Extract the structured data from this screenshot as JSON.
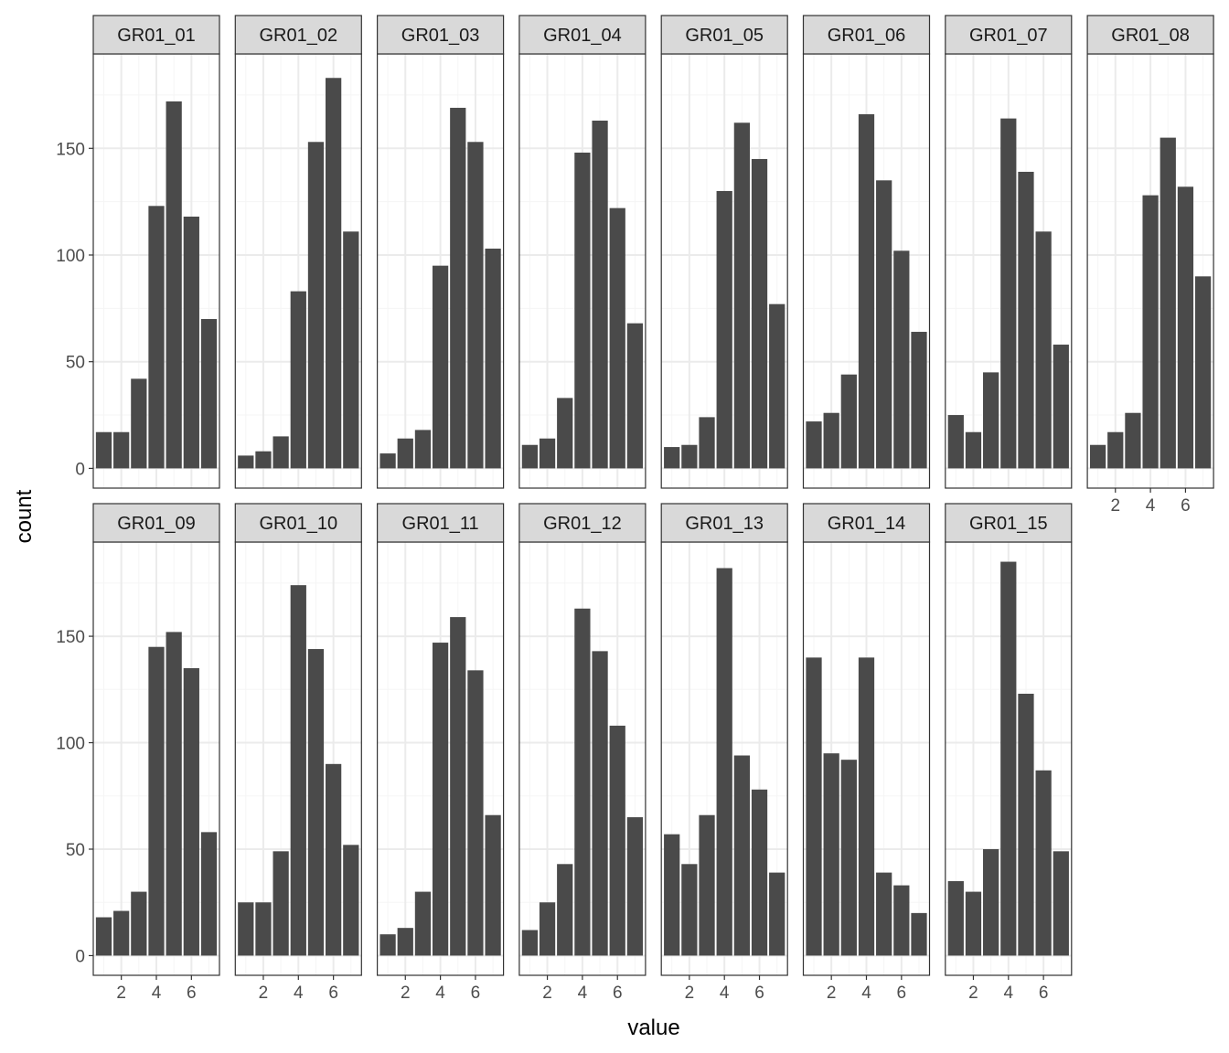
{
  "chart_data": {
    "type": "bar",
    "facet_layout": "wrap",
    "xlabel": "value",
    "ylabel": "count",
    "x": [
      1,
      2,
      3,
      4,
      5,
      6,
      7
    ],
    "xlim": [
      0.4,
      7.6
    ],
    "ylim": [
      0,
      185
    ],
    "x_ticks": [
      2,
      4,
      6
    ],
    "y_ticks": [
      0,
      50,
      100,
      150
    ],
    "grid": true,
    "colors": {
      "bar": "#4a4a4a",
      "strip": "#d9d9d9",
      "border": "#333333",
      "grid_major": "#ebebeb",
      "grid_minor": "#f5f5f5"
    },
    "facets": [
      {
        "name": "GR01_01",
        "values": [
          17,
          17,
          42,
          123,
          172,
          118,
          70
        ]
      },
      {
        "name": "GR01_02",
        "values": [
          6,
          8,
          15,
          83,
          153,
          183,
          111
        ]
      },
      {
        "name": "GR01_03",
        "values": [
          7,
          14,
          18,
          95,
          169,
          153,
          103
        ]
      },
      {
        "name": "GR01_04",
        "values": [
          11,
          14,
          33,
          148,
          163,
          122,
          68
        ]
      },
      {
        "name": "GR01_05",
        "values": [
          10,
          11,
          24,
          130,
          162,
          145,
          77
        ]
      },
      {
        "name": "GR01_06",
        "values": [
          22,
          26,
          44,
          166,
          135,
          102,
          64
        ]
      },
      {
        "name": "GR01_07",
        "values": [
          25,
          17,
          45,
          164,
          139,
          111,
          58
        ]
      },
      {
        "name": "GR01_08",
        "values": [
          11,
          17,
          26,
          128,
          155,
          132,
          90
        ]
      },
      {
        "name": "GR01_09",
        "values": [
          18,
          21,
          30,
          145,
          152,
          135,
          58
        ]
      },
      {
        "name": "GR01_10",
        "values": [
          25,
          25,
          49,
          174,
          144,
          90,
          52
        ]
      },
      {
        "name": "GR01_11",
        "values": [
          10,
          13,
          30,
          147,
          159,
          134,
          66
        ]
      },
      {
        "name": "GR01_12",
        "values": [
          12,
          25,
          43,
          163,
          143,
          108,
          65
        ]
      },
      {
        "name": "GR01_13",
        "values": [
          57,
          43,
          66,
          182,
          94,
          78,
          39
        ]
      },
      {
        "name": "GR01_14",
        "values": [
          140,
          95,
          92,
          140,
          39,
          33,
          20
        ]
      },
      {
        "name": "GR01_15",
        "values": [
          35,
          30,
          50,
          185,
          123,
          87,
          49
        ]
      }
    ]
  }
}
